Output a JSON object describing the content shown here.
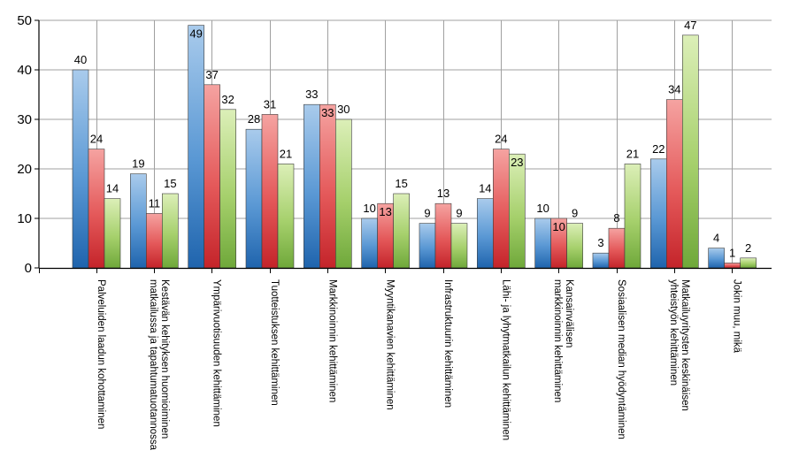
{
  "chart_data": {
    "type": "bar",
    "categories": [
      [
        "Palveluiden laadun kohottaminen"
      ],
      [
        "Kestävän kehityksen huomioiminen",
        "matkailussa ja tapahtumatuotannossa"
      ],
      [
        "Ympärivuotisuuden kehittäminen"
      ],
      [
        "Tuotteistuksen kehittäminen"
      ],
      [
        "Markkinoinnin kehittäminen"
      ],
      [
        "Myyntikanavien kehittäminen"
      ],
      [
        "Infrastruktuurin kehittäminen"
      ],
      [
        "Lähi- ja lyhytmatkailun kehittäminen"
      ],
      [
        "Kansainvälisen",
        "markkinoinnin kehittäminen"
      ],
      [
        "Sosiaalisen median hyödyntäminen"
      ],
      [
        "Matkailuyritysten keskinäisen",
        "yhteistyön kehittäminen"
      ],
      [
        "Jokin muu, mikä"
      ]
    ],
    "series": [
      {
        "values": [
          40,
          19,
          49,
          28,
          33,
          10,
          9,
          14,
          10,
          3,
          22,
          4
        ],
        "color": "#3a7fc4"
      },
      {
        "values": [
          24,
          11,
          37,
          31,
          33,
          13,
          13,
          24,
          10,
          8,
          34,
          1
        ],
        "color": "#e0393c"
      },
      {
        "values": [
          14,
          15,
          32,
          21,
          30,
          15,
          9,
          23,
          9,
          21,
          47,
          2
        ],
        "color": "#8cc04a"
      }
    ],
    "labels_inside": [
      [
        false,
        false,
        true,
        false,
        false,
        false,
        false,
        false,
        false,
        false,
        false,
        false
      ],
      [
        false,
        false,
        false,
        false,
        true,
        true,
        false,
        false,
        true,
        false,
        false,
        false
      ],
      [
        false,
        false,
        false,
        false,
        false,
        false,
        false,
        true,
        false,
        false,
        false,
        false
      ]
    ],
    "y_ticks": [
      "0",
      "10",
      "20",
      "30",
      "40",
      "50"
    ],
    "ylim": [
      0,
      50
    ],
    "grid": true,
    "legend": "none"
  }
}
